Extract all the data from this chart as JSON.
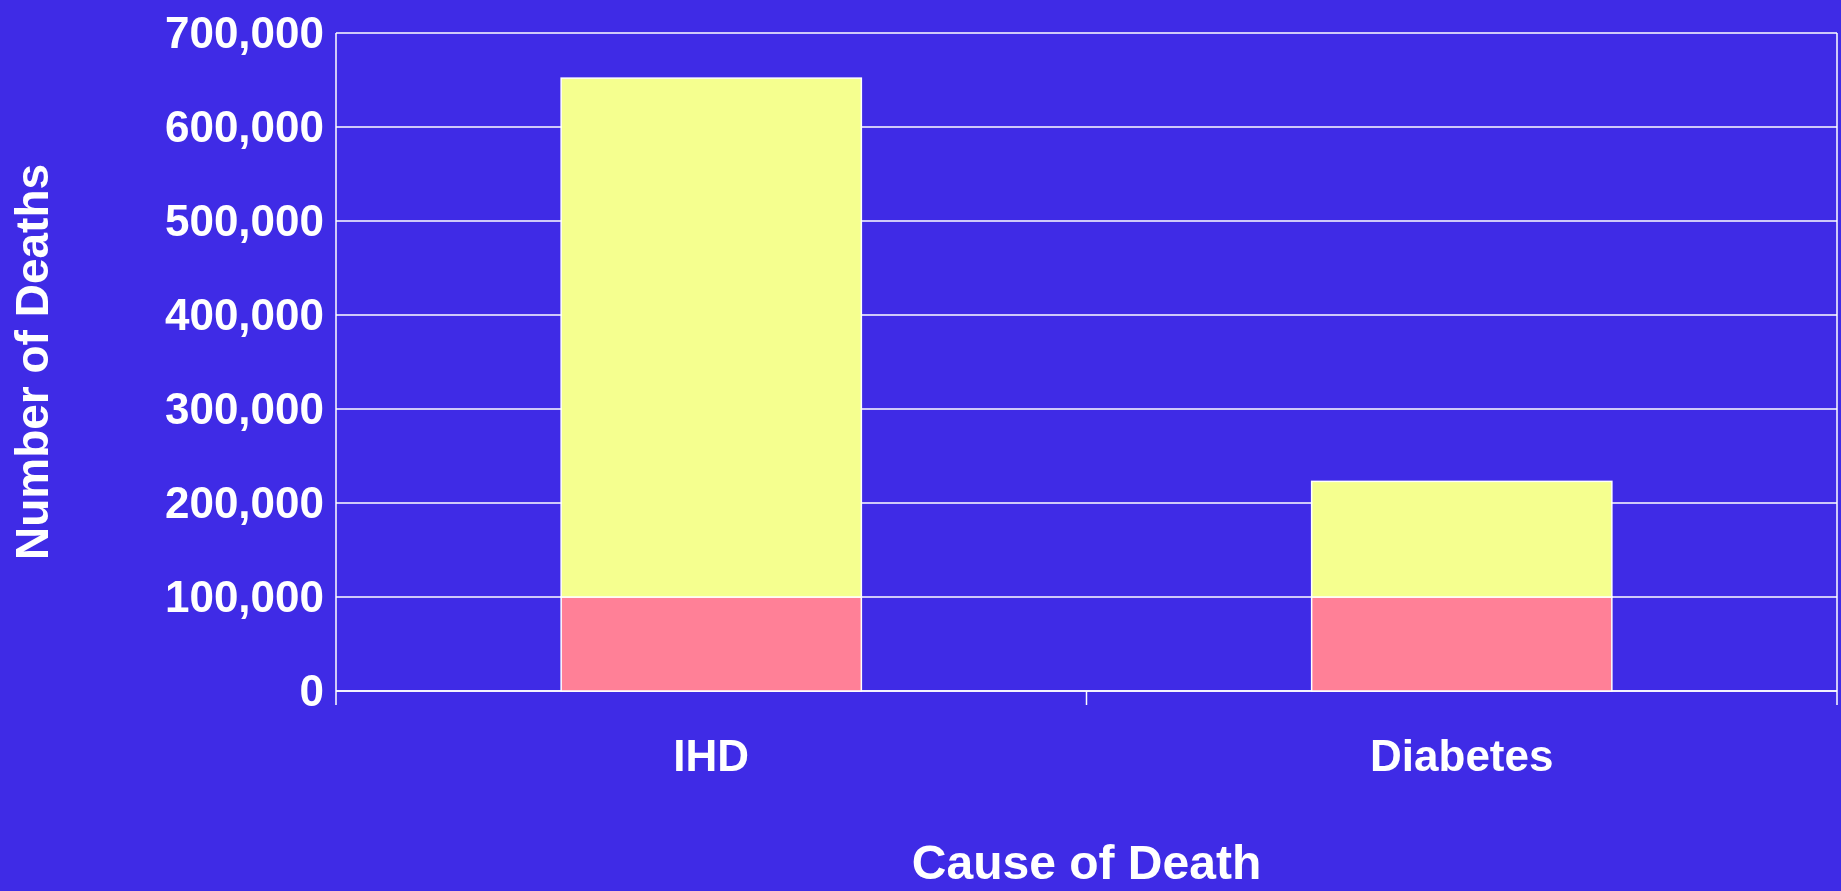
{
  "chart_data": {
    "type": "bar",
    "xlabel": "Cause of Death",
    "ylabel": "Number of Deaths",
    "categories": [
      "IHD",
      "Diabetes"
    ],
    "stacked": true,
    "series": [
      {
        "color": "#ff8097",
        "values": [
          100000,
          100000
        ]
      },
      {
        "color": "#f5ff8f",
        "values": [
          552000,
          123000
        ]
      }
    ],
    "ylim": [
      0,
      700000
    ],
    "yticks": [
      {
        "value": 0,
        "label": "0"
      },
      {
        "value": 100000,
        "label": "100,000"
      },
      {
        "value": 200000,
        "label": "200,000"
      },
      {
        "value": 300000,
        "label": "300,000"
      },
      {
        "value": 400000,
        "label": "400,000"
      },
      {
        "value": 500000,
        "label": "500,000"
      },
      {
        "value": 600000,
        "label": "600,000"
      },
      {
        "value": 700000,
        "label": "700,000"
      }
    ],
    "grid": "y"
  }
}
